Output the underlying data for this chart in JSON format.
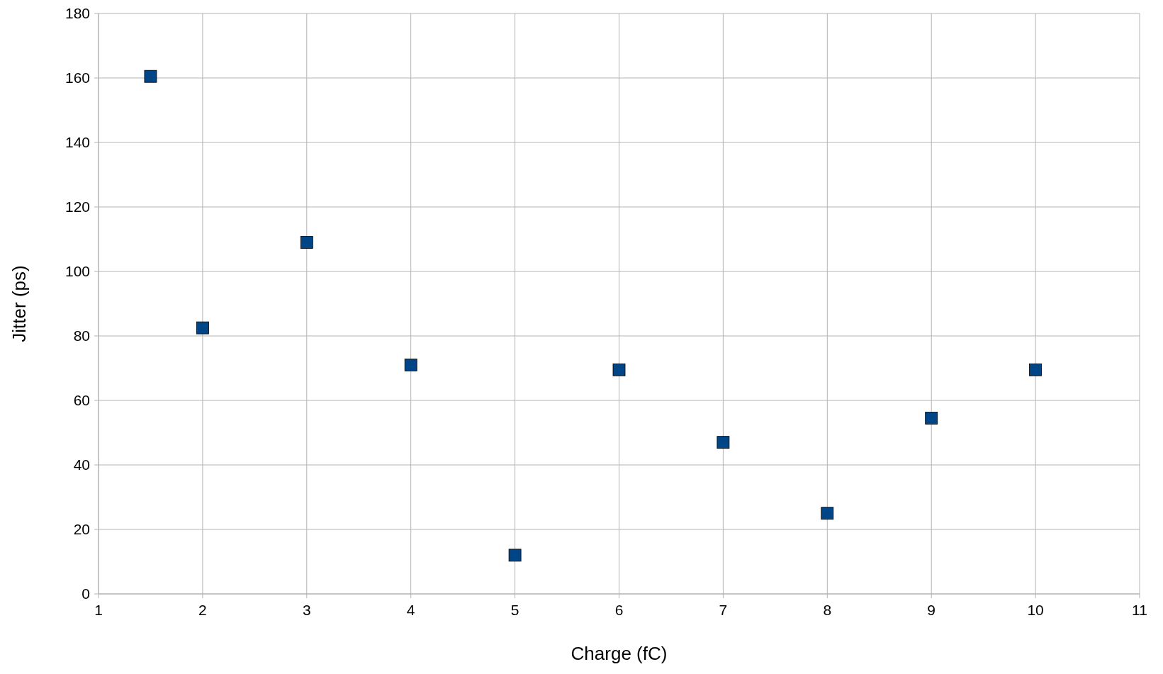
{
  "chart_data": {
    "type": "scatter",
    "xlabel": "Charge (fC)",
    "ylabel": "Jitter (ps)",
    "x": [
      1.5,
      2,
      3,
      4,
      5,
      6,
      7,
      8,
      9,
      10
    ],
    "series": [
      {
        "color": "#004586",
        "values": [
          160.5,
          82.5,
          109,
          71,
          12,
          69.5,
          47,
          25,
          54.5,
          69.5
        ]
      }
    ],
    "xlim": [
      1,
      11
    ],
    "xticks": [
      1,
      2,
      3,
      4,
      5,
      6,
      7,
      8,
      9,
      10,
      11
    ],
    "ylim": [
      0,
      180
    ],
    "yticks": [
      0,
      20,
      40,
      60,
      80,
      100,
      120,
      140,
      160,
      180
    ],
    "grid": true,
    "marker": "square"
  }
}
